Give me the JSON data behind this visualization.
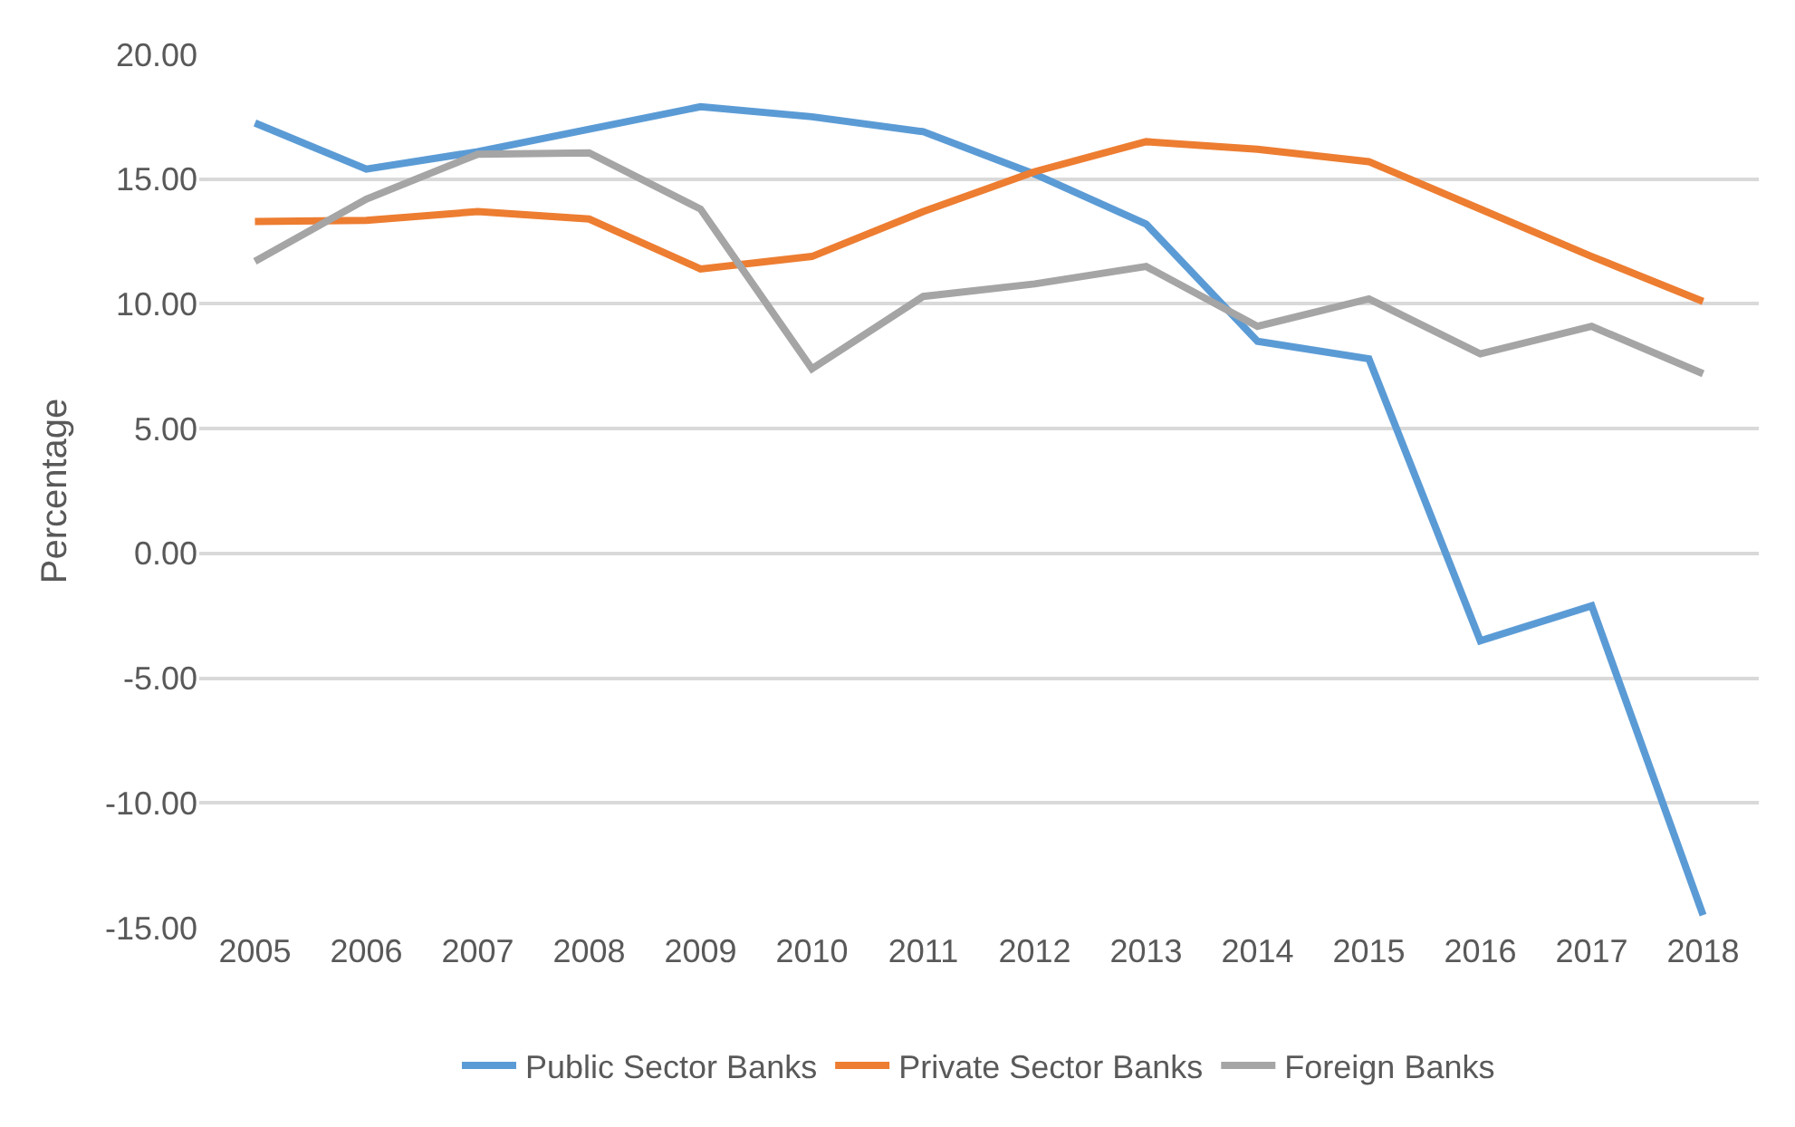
{
  "chart_data": {
    "type": "line",
    "ylabel": "Percentage",
    "categories": [
      "2005",
      "2006",
      "2007",
      "2008",
      "2009",
      "2010",
      "2011",
      "2012",
      "2013",
      "2014",
      "2015",
      "2016",
      "2017",
      "2018"
    ],
    "series": [
      {
        "name": "Public Sector Banks",
        "color": "#5b9bd5",
        "values": [
          17.25,
          15.4,
          16.1,
          17.0,
          17.9,
          17.5,
          16.9,
          15.2,
          13.2,
          8.5,
          7.8,
          -3.5,
          -2.1,
          -14.5
        ]
      },
      {
        "name": "Private Sector Banks",
        "color": "#ed7d31",
        "values": [
          13.3,
          13.35,
          13.7,
          13.4,
          11.4,
          11.9,
          13.7,
          15.3,
          16.5,
          16.2,
          15.7,
          13.8,
          11.9,
          10.1
        ]
      },
      {
        "name": "Foreign Banks",
        "color": "#a5a5a5",
        "values": [
          11.7,
          14.2,
          16.0,
          16.05,
          13.8,
          7.4,
          10.3,
          10.8,
          11.5,
          9.1,
          10.2,
          8.0,
          9.1,
          7.2
        ]
      }
    ],
    "ylim": [
      -15,
      20
    ],
    "yticks": [
      {
        "value": -15,
        "label": "-15.00"
      },
      {
        "value": -10,
        "label": "-10.00"
      },
      {
        "value": -5,
        "label": "-5.00"
      },
      {
        "value": 0,
        "label": "0.00"
      },
      {
        "value": 5,
        "label": "5.00"
      },
      {
        "value": 10,
        "label": "10.00"
      },
      {
        "value": 15,
        "label": "15.00"
      },
      {
        "value": 20,
        "label": "20.00"
      }
    ],
    "grid": "y",
    "legend": "bottom",
    "marker": "none",
    "line_style": "solid"
  }
}
